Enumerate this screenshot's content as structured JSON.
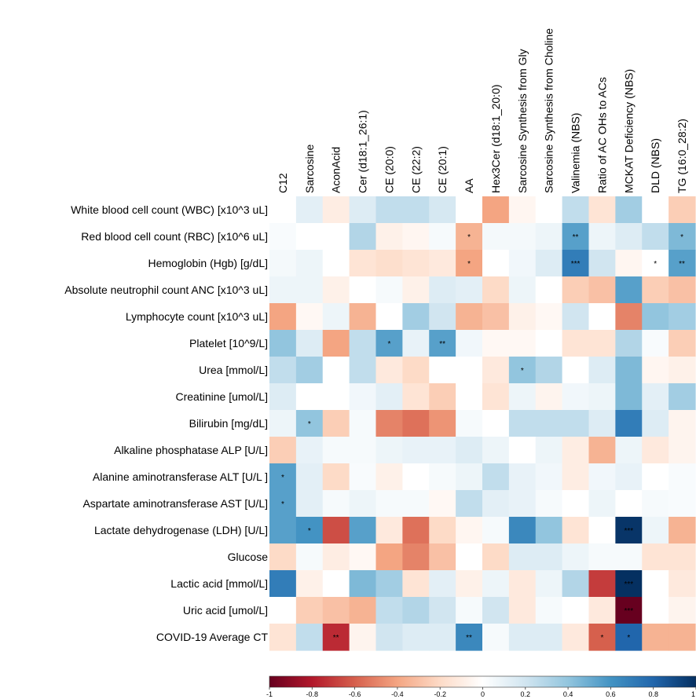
{
  "chart_data": {
    "type": "heatmap",
    "title": "",
    "columns": [
      "C12",
      "Sarcosine",
      "AconAcid",
      "Cer (d18:1_26:1)",
      "CE (20:0)",
      "CE (22:2)",
      "CE (20:1)",
      "AA",
      "Hex3Cer (d18:1_20:0)",
      "Sarcosine Synthesis from Gly",
      "Sarcosine Synthesis from Choline",
      "Valinemia (NBS)",
      "Ratio of AC OHs to ACs",
      "MCKAT Deficiency (NBS)",
      "DLD (NBS)",
      "TG (16:0_28:2)"
    ],
    "rows": [
      "White blood cell count (WBC) [x10^3 uL]",
      "Red blood cell count (RBC) [x10^6 uL]",
      "Hemoglobin (Hgb) [g/dL]",
      "Absolute neutrophil count ANC [x10^3 uL]",
      "Lymphocyte count [x10^3 uL]",
      "Platelet  [10^9/L]",
      "Urea [mmol/L]",
      "Creatinine [umol/L]",
      "Bilirubin [mg/dL]",
      "Alkaline phosphatase ALP [U/L]",
      "Alanine aminotransferase ALT [U/L ]",
      "Aspartate aminotransferase AST [U/L]",
      "Lactate dehydrogenase (LDH) [U/L]",
      "Glucose",
      "Lactic acid [mmol/L]",
      "Uric acid [umol/L]",
      "COVID-19 Average CT"
    ],
    "values": [
      [
        0.0,
        0.12,
        -0.1,
        0.15,
        0.25,
        0.25,
        0.18,
        0.0,
        -0.4,
        -0.05,
        0.0,
        0.25,
        -0.15,
        0.35,
        0.0,
        -0.25
      ],
      [
        0.03,
        0.0,
        0.0,
        0.3,
        -0.08,
        -0.05,
        0.04,
        -0.35,
        0.05,
        0.05,
        0.08,
        0.55,
        0.08,
        0.15,
        0.25,
        0.45
      ],
      [
        0.05,
        0.08,
        0.0,
        -0.15,
        -0.18,
        -0.15,
        -0.12,
        -0.4,
        0.0,
        0.06,
        0.15,
        0.7,
        0.2,
        -0.05,
        0.0,
        0.55
      ],
      [
        0.08,
        0.08,
        -0.08,
        0.0,
        0.04,
        -0.08,
        0.15,
        0.12,
        -0.2,
        0.08,
        0.0,
        -0.25,
        -0.3,
        0.55,
        -0.25,
        -0.3
      ],
      [
        -0.4,
        -0.04,
        0.08,
        -0.35,
        0.0,
        0.35,
        0.2,
        -0.35,
        -0.3,
        -0.08,
        -0.04,
        0.2,
        0.0,
        -0.5,
        0.4,
        0.35
      ],
      [
        0.4,
        0.15,
        -0.4,
        0.25,
        0.55,
        0.1,
        0.55,
        0.06,
        -0.04,
        -0.04,
        0.0,
        -0.15,
        -0.15,
        0.3,
        0.03,
        -0.25
      ],
      [
        0.25,
        0.35,
        0.0,
        0.25,
        -0.12,
        -0.2,
        0.0,
        0.0,
        -0.12,
        0.4,
        0.3,
        0.0,
        0.15,
        0.45,
        -0.05,
        -0.08
      ],
      [
        0.15,
        0.0,
        0.0,
        0.06,
        0.12,
        -0.15,
        -0.25,
        0.0,
        -0.15,
        0.08,
        -0.06,
        0.06,
        0.08,
        0.45,
        0.12,
        0.35
      ],
      [
        0.08,
        0.4,
        -0.25,
        0.04,
        -0.5,
        -0.55,
        -0.45,
        0.04,
        0.0,
        0.25,
        0.25,
        0.25,
        0.15,
        0.7,
        0.15,
        -0.06
      ],
      [
        -0.25,
        0.1,
        0.04,
        0.04,
        0.08,
        0.1,
        0.1,
        0.15,
        0.08,
        0.0,
        0.08,
        -0.1,
        -0.35,
        0.08,
        -0.12,
        -0.06
      ],
      [
        0.55,
        0.12,
        -0.2,
        0.03,
        -0.08,
        0.0,
        0.04,
        0.08,
        0.25,
        0.1,
        0.06,
        -0.1,
        0.06,
        0.1,
        0.0,
        0.03
      ],
      [
        0.55,
        0.12,
        0.04,
        0.08,
        0.04,
        0.04,
        -0.04,
        0.25,
        0.12,
        0.1,
        0.04,
        0.0,
        0.08,
        0.0,
        0.04,
        0.03
      ],
      [
        0.55,
        0.6,
        -0.65,
        0.55,
        -0.12,
        -0.55,
        -0.2,
        -0.05,
        0.04,
        0.65,
        0.4,
        -0.15,
        0.0,
        0.98,
        0.08,
        -0.35
      ],
      [
        -0.2,
        0.04,
        -0.1,
        -0.04,
        -0.4,
        -0.5,
        -0.3,
        0.0,
        -0.2,
        0.15,
        0.15,
        0.08,
        0.04,
        0.04,
        -0.15,
        -0.15
      ],
      [
        0.7,
        -0.08,
        0.0,
        0.45,
        0.35,
        -0.15,
        0.12,
        -0.08,
        0.08,
        -0.12,
        0.08,
        0.3,
        -0.7,
        1.0,
        0.0,
        -0.12
      ],
      [
        0.0,
        -0.25,
        -0.3,
        -0.35,
        0.25,
        0.3,
        0.2,
        0.04,
        0.2,
        -0.12,
        0.04,
        0.0,
        -0.12,
        -1.0,
        0.0,
        -0.06
      ],
      [
        -0.15,
        0.25,
        -0.75,
        -0.06,
        0.2,
        0.15,
        0.15,
        0.65,
        0.04,
        0.15,
        0.15,
        -0.12,
        -0.6,
        0.8,
        -0.35,
        -0.35
      ]
    ],
    "significance": [
      [
        "",
        "",
        "",
        "",
        "",
        "",
        "",
        "",
        "",
        "",
        "",
        "",
        "",
        "",
        "",
        ""
      ],
      [
        "",
        "",
        "",
        "",
        "",
        "",
        "",
        "*",
        "",
        "",
        "",
        "**",
        "",
        "",
        "",
        "*"
      ],
      [
        "",
        "",
        "",
        "",
        "",
        "",
        "",
        "*",
        "",
        "",
        "",
        "***",
        "",
        "",
        "*",
        "**"
      ],
      [
        "",
        "",
        "",
        "",
        "",
        "",
        "",
        "",
        "",
        "",
        "",
        "",
        "",
        "",
        "",
        ""
      ],
      [
        "",
        "",
        "",
        "",
        "",
        "",
        "",
        "",
        "",
        "",
        "",
        "",
        "",
        "",
        "",
        ""
      ],
      [
        "",
        "",
        "",
        "",
        "*",
        "",
        "**",
        "",
        "",
        "",
        "",
        "",
        "",
        "",
        "",
        ""
      ],
      [
        "",
        "",
        "",
        "",
        "",
        "",
        "",
        "",
        "",
        "*",
        "",
        "",
        "",
        "",
        "",
        ""
      ],
      [
        "",
        "",
        "",
        "",
        "",
        "",
        "",
        "",
        "",
        "",
        "",
        "",
        "",
        "",
        "",
        ""
      ],
      [
        "",
        "*",
        "",
        "",
        "",
        "",
        "",
        "",
        "",
        "",
        "",
        "",
        "",
        "",
        "",
        ""
      ],
      [
        "",
        "",
        "",
        "",
        "",
        "",
        "",
        "",
        "",
        "",
        "",
        "",
        "",
        "",
        "",
        ""
      ],
      [
        "*",
        "",
        "",
        "",
        "",
        "",
        "",
        "",
        "",
        "",
        "",
        "",
        "",
        "",
        "",
        ""
      ],
      [
        "*",
        "",
        "",
        "",
        "",
        "",
        "",
        "",
        "",
        "",
        "",
        "",
        "",
        "",
        "",
        ""
      ],
      [
        "",
        "*",
        "",
        "",
        "",
        "",
        "",
        "",
        "",
        "",
        "",
        "",
        "",
        "***",
        "",
        ""
      ],
      [
        "",
        "",
        "",
        "",
        "",
        "",
        "",
        "",
        "",
        "",
        "",
        "",
        "",
        "",
        "",
        ""
      ],
      [
        "",
        "",
        "",
        "",
        "",
        "",
        "",
        "",
        "",
        "",
        "",
        "",
        "",
        "***",
        "",
        ""
      ],
      [
        "",
        "",
        "",
        "",
        "",
        "",
        "",
        "",
        "",
        "",
        "",
        "",
        "",
        "***",
        "",
        ""
      ],
      [
        "",
        "",
        "**",
        "",
        "",
        "",
        "",
        "**",
        "",
        "",
        "",
        "",
        "*",
        "*",
        "",
        ""
      ]
    ],
    "colorbar": {
      "min": -1,
      "max": 1,
      "ticks": [
        -1,
        -0.8,
        -0.6,
        -0.4,
        -0.2,
        0,
        0.2,
        0.4,
        0.6,
        0.8,
        1
      ],
      "tick_labels": [
        "-1",
        "-0.8",
        "-0.6",
        "-0.4",
        "-0.2",
        "0",
        "0.2",
        "0.4",
        "0.6",
        "0.8",
        "1"
      ],
      "colors": [
        "#67001f",
        "#b2182b",
        "#d6604d",
        "#f4a582",
        "#fddbc7",
        "#ffffff",
        "#d1e5f0",
        "#92c5de",
        "#4393c3",
        "#2166ac",
        "#053061"
      ]
    },
    "legend_position": "bottom"
  }
}
